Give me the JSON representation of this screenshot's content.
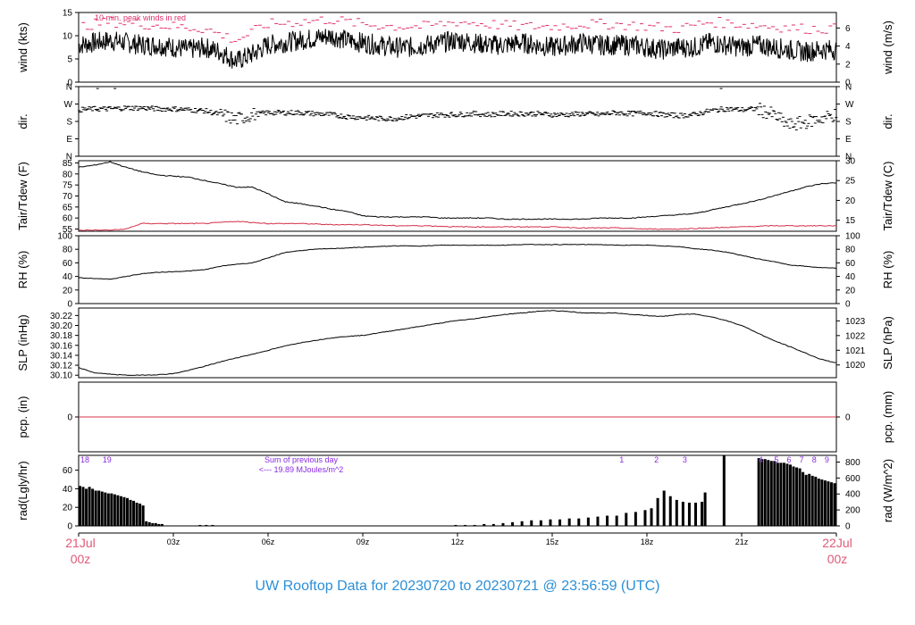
{
  "title": "UW Rooftop Data for 20230720  to  20230721 @ 23:56:59  (UTC)",
  "colors": {
    "line": "#000000",
    "tdew": "#d4304a",
    "peak": "#e0306a",
    "pcp": "#d4304a",
    "annot": "#8a2be2",
    "date": "#e05a78",
    "title": "#2b8fd6"
  },
  "chart_data": [
    {
      "id": "wind",
      "type": "line",
      "ylabel": "wind (kts)",
      "ylabel_right": "wind (m/s)",
      "ylim": [
        0,
        15
      ],
      "yticks": [
        0,
        5,
        10,
        15
      ],
      "right_ylim": [
        0,
        7.72
      ],
      "right_yticks": [
        0,
        2,
        4,
        6
      ],
      "annotation": "10 min. peak winds in red",
      "series": [
        {
          "role": "mean",
          "x": [
            0,
            0.5,
            1,
            1.5,
            2,
            2.5,
            3,
            3.5,
            4,
            4.5,
            5,
            5.5,
            6,
            6.5,
            7,
            7.5,
            8,
            8.5,
            9,
            9.5,
            10,
            10.5,
            11,
            11.5,
            12,
            12.5,
            13,
            13.5,
            14,
            14.5,
            15,
            15.5,
            16,
            16.5,
            17,
            17.5,
            18,
            18.5,
            19,
            19.5,
            20,
            20.5,
            21,
            21.5,
            22,
            22.5,
            23,
            23.5,
            24
          ],
          "y": [
            8,
            8.5,
            9,
            8.5,
            8,
            8,
            7.5,
            7,
            7.5,
            6.5,
            4.5,
            6,
            8,
            8.5,
            9,
            9.5,
            10,
            9,
            8.5,
            8,
            7.5,
            7.5,
            8,
            8.5,
            9,
            8.5,
            8,
            8,
            8.5,
            8,
            7.5,
            8,
            8.5,
            8,
            8,
            8,
            7.5,
            7,
            7.5,
            7.5,
            8.5,
            8,
            7.5,
            8,
            7.5,
            7,
            6.5,
            7,
            7
          ]
        },
        {
          "role": "peak",
          "x": [
            0,
            1,
            2,
            3,
            4,
            5,
            6,
            7,
            8,
            9,
            10,
            11,
            12,
            13,
            14,
            15,
            16,
            17,
            18,
            19,
            20,
            21,
            22,
            23,
            24
          ],
          "y": [
            12,
            13,
            12.5,
            12,
            11.5,
            9,
            12.5,
            13,
            13.5,
            12.5,
            12,
            12,
            13,
            12.5,
            12,
            12,
            12.5,
            12.5,
            12,
            11.5,
            13,
            12.5,
            12,
            11.5,
            11.5
          ]
        }
      ]
    },
    {
      "id": "dir",
      "type": "scatter",
      "ylabel": "dir.",
      "ylabel_right": "dir.",
      "ylim": [
        0,
        360
      ],
      "yticks": [
        0,
        90,
        180,
        270,
        360
      ],
      "ytick_labels": [
        "N",
        "E",
        "S",
        "W",
        "N"
      ],
      "series": [
        {
          "x": [
            0,
            0.5,
            1,
            1.5,
            2,
            2.5,
            3,
            3.5,
            4,
            4.5,
            5,
            5.5,
            6,
            6.5,
            7,
            7.5,
            8,
            8.5,
            9,
            9.5,
            10,
            10.5,
            11,
            11.5,
            12,
            12.5,
            13,
            13.5,
            14,
            14.5,
            15,
            15.5,
            16,
            16.5,
            17,
            17.5,
            18,
            18.5,
            19,
            19.5,
            20,
            20.5,
            21,
            21.5,
            22,
            22.5,
            23,
            23.5,
            24
          ],
          "y": [
            240,
            245,
            245,
            250,
            250,
            245,
            245,
            240,
            235,
            215,
            190,
            215,
            225,
            225,
            225,
            220,
            215,
            205,
            200,
            195,
            195,
            205,
            210,
            215,
            215,
            220,
            215,
            220,
            220,
            220,
            215,
            215,
            220,
            215,
            225,
            220,
            225,
            215,
            210,
            215,
            235,
            245,
            240,
            245,
            215,
            160,
            175,
            195,
            215
          ]
        }
      ]
    },
    {
      "id": "temp",
      "type": "line",
      "ylabel": "Tair/Tdew (F)",
      "ylabel_right": "Tair/Tdew (C)",
      "ylim": [
        54,
        86
      ],
      "yticks": [
        55,
        60,
        65,
        70,
        75,
        80,
        85
      ],
      "right_yticks": [
        15,
        20,
        25,
        30
      ],
      "series": [
        {
          "name": "Tair",
          "role": "tair",
          "x": [
            0,
            0.5,
            1,
            1.5,
            2,
            2.5,
            3,
            3.5,
            4,
            4.5,
            5,
            5.5,
            6,
            6.5,
            7,
            7.5,
            8,
            8.5,
            9,
            9.5,
            10,
            10.5,
            11,
            11.5,
            12,
            12.5,
            13,
            13.5,
            14,
            14.5,
            15,
            15.5,
            16,
            16.5,
            17,
            17.5,
            18,
            18.5,
            19,
            19.5,
            20,
            20.5,
            21,
            21.5,
            22,
            22.5,
            23,
            23.5,
            24
          ],
          "y": [
            83,
            84,
            85.5,
            83,
            81,
            79.5,
            79,
            78.5,
            77,
            75.5,
            74,
            74,
            71,
            67.5,
            66.5,
            65.5,
            64,
            63,
            61,
            60.5,
            60.5,
            60.5,
            60.5,
            60,
            60,
            60,
            60,
            59.5,
            59.5,
            59.5,
            59.5,
            59.5,
            59.5,
            60,
            60,
            60,
            60.5,
            61,
            61.5,
            62,
            63.5,
            65,
            66.5,
            68,
            70,
            72,
            74,
            75.5,
            76
          ]
        },
        {
          "name": "Tdew",
          "role": "tdew",
          "x": [
            0,
            1,
            1.5,
            2,
            3,
            4,
            5,
            6,
            7,
            8,
            9,
            10,
            11,
            12,
            13,
            14,
            15,
            16,
            17,
            18,
            19,
            20,
            21,
            22,
            23,
            24
          ],
          "y": [
            54.5,
            54.5,
            55,
            57.5,
            57.5,
            57.5,
            58.5,
            57.5,
            57.5,
            57,
            57,
            56.5,
            56.5,
            56,
            56,
            56,
            56,
            55.5,
            55.5,
            55,
            55,
            55.5,
            56,
            56.5,
            56.5,
            56.5
          ]
        }
      ]
    },
    {
      "id": "rh",
      "type": "line",
      "ylabel": "RH (%)",
      "ylabel_right": "RH (%)",
      "ylim": [
        0,
        100
      ],
      "yticks": [
        0,
        20,
        40,
        60,
        80,
        100
      ],
      "series": [
        {
          "x": [
            0,
            0.5,
            1,
            1.5,
            2,
            2.5,
            3,
            3.5,
            4,
            4.5,
            5,
            5.5,
            6,
            6.5,
            7,
            7.5,
            8,
            8.5,
            9,
            9.5,
            10,
            10.5,
            11,
            11.5,
            12,
            12.5,
            13,
            13.5,
            14,
            14.5,
            15,
            15.5,
            16,
            16.5,
            17,
            17.5,
            18,
            18.5,
            19,
            19.5,
            20,
            20.5,
            21,
            21.5,
            22,
            22.5,
            23,
            23.5,
            24
          ],
          "y": [
            38,
            37,
            36,
            40,
            44,
            46,
            47,
            48,
            50,
            55,
            58,
            60,
            67,
            75,
            78,
            80,
            81,
            82,
            83,
            84,
            85,
            85,
            85,
            86,
            86,
            86,
            86,
            86,
            87,
            87,
            87,
            87,
            87,
            87,
            86,
            86,
            86,
            85,
            84,
            81,
            79,
            76,
            71,
            66,
            62,
            57,
            55,
            53,
            52
          ]
        }
      ]
    },
    {
      "id": "slp",
      "type": "line",
      "ylabel": "SLP (inHg)",
      "ylabel_right": "SLP (hPa)",
      "ylim": [
        30.095,
        30.235
      ],
      "yticks": [
        30.1,
        30.12,
        30.14,
        30.16,
        30.18,
        30.2,
        30.22
      ],
      "ytick_labels": [
        "30.10",
        "30.12",
        "30.14",
        "30.16",
        "30.18",
        "30.20",
        "30.22"
      ],
      "right_yticks": [
        1020,
        1021,
        1022,
        1023
      ],
      "series": [
        {
          "x": [
            0,
            0.5,
            1,
            1.5,
            2,
            2.5,
            3,
            3.5,
            4,
            4.5,
            5,
            5.5,
            6,
            6.5,
            7,
            7.5,
            8,
            8.5,
            9,
            9.5,
            10,
            10.5,
            11,
            11.5,
            12,
            12.5,
            13,
            13.5,
            14,
            14.5,
            15,
            15.5,
            16,
            16.5,
            17,
            17.5,
            18,
            18.5,
            19,
            19.5,
            20,
            20.5,
            21,
            21.5,
            22,
            22.5,
            23,
            23.5,
            24
          ],
          "y": [
            30.115,
            30.105,
            30.102,
            30.1,
            30.1,
            30.101,
            30.103,
            30.11,
            30.118,
            30.127,
            30.135,
            30.142,
            30.15,
            30.158,
            30.165,
            30.17,
            30.175,
            30.178,
            30.18,
            30.185,
            30.19,
            30.195,
            30.2,
            30.205,
            30.21,
            30.213,
            30.218,
            30.222,
            30.225,
            30.228,
            30.23,
            30.228,
            30.225,
            30.225,
            30.225,
            30.222,
            30.22,
            30.218,
            30.222,
            30.223,
            30.218,
            30.21,
            30.2,
            30.185,
            30.17,
            30.158,
            30.145,
            30.132,
            30.125
          ]
        }
      ]
    },
    {
      "id": "pcp",
      "type": "line",
      "ylabel": "pcp. (in)",
      "ylabel_right": "pcp. (mm)",
      "ylim": [
        -1,
        1
      ],
      "yticks": [
        0
      ],
      "right_yticks": [
        0
      ],
      "series": [
        {
          "x": [
            0,
            24
          ],
          "y": [
            0,
            0
          ]
        }
      ]
    },
    {
      "id": "rad",
      "type": "bar",
      "ylabel": "rad(Lgly/hr)",
      "ylabel_right": "rad (W/m^2)",
      "ylim": [
        0,
        76
      ],
      "yticks": [
        0,
        20,
        40,
        60
      ],
      "right_yticks": [
        0,
        200,
        400,
        600,
        800
      ],
      "hour_labels": [
        {
          "x": 0.2,
          "label": "18"
        },
        {
          "x": 0.9,
          "label": "19"
        },
        {
          "x": 17.2,
          "label": "1"
        },
        {
          "x": 18.3,
          "label": "2"
        },
        {
          "x": 19.2,
          "label": "3"
        },
        {
          "x": 21.6,
          "label": "4"
        },
        {
          "x": 22.1,
          "label": "5"
        },
        {
          "x": 22.5,
          "label": "6"
        },
        {
          "x": 22.9,
          "label": "7"
        },
        {
          "x": 23.3,
          "label": "8"
        },
        {
          "x": 23.7,
          "label": "9"
        }
      ],
      "annotation_lines": [
        "Sum of previous day",
        "<--- 19.89 MJoules/m^2"
      ],
      "series": [
        {
          "x": [
            0,
            0.1,
            0.2,
            0.3,
            0.4,
            0.5,
            0.6,
            0.7,
            0.8,
            0.9,
            1.0,
            1.1,
            1.2,
            1.3,
            1.4,
            1.5,
            1.6,
            1.7,
            1.8,
            1.9,
            2.0,
            2.1,
            2.2,
            2.3,
            2.4,
            2.5,
            2.6,
            3.8,
            4.0,
            4.2,
            11.9,
            12.2,
            12.5,
            12.8,
            13.1,
            13.4,
            13.7,
            14.0,
            14.3,
            14.6,
            14.9,
            15.2,
            15.5,
            15.8,
            16.1,
            16.4,
            16.7,
            17.0,
            17.3,
            17.6,
            17.9,
            18.1,
            18.3,
            18.5,
            18.7,
            18.9,
            19.1,
            19.3,
            19.5,
            19.7,
            19.8,
            20.4,
            21.5,
            21.6,
            21.7,
            21.8,
            21.9,
            22.0,
            22.1,
            22.2,
            22.3,
            22.4,
            22.5,
            22.6,
            22.7,
            22.8,
            22.9,
            23.0,
            23.1,
            23.2,
            23.3,
            23.4,
            23.5,
            23.6,
            23.7,
            23.8,
            23.9
          ],
          "y": [
            43,
            42,
            40,
            42,
            40,
            38,
            38,
            37,
            36,
            35,
            35,
            34,
            33,
            32,
            31,
            30,
            28,
            27,
            25,
            24,
            22,
            5,
            4,
            3,
            3,
            2,
            2,
            1,
            1,
            1,
            1,
            1,
            1,
            2,
            2,
            3,
            4,
            5,
            6,
            6,
            7,
            7,
            8,
            8,
            9,
            10,
            11,
            11,
            14,
            15,
            17,
            19,
            30,
            38,
            32,
            28,
            26,
            25,
            25,
            26,
            36,
            76,
            73,
            72,
            72,
            71,
            70,
            70,
            68,
            68,
            68,
            67,
            66,
            64,
            63,
            62,
            58,
            55,
            56,
            54,
            53,
            51,
            50,
            49,
            48,
            47,
            46
          ]
        }
      ]
    }
  ],
  "x_axis": {
    "range": [
      0,
      24
    ],
    "ticks": [
      {
        "x": 3,
        "label": "03z"
      },
      {
        "x": 6,
        "label": "06z"
      },
      {
        "x": 9,
        "label": "09z"
      },
      {
        "x": 12,
        "label": "12z"
      },
      {
        "x": 15,
        "label": "15z"
      },
      {
        "x": 18,
        "label": "18z"
      },
      {
        "x": 21,
        "label": "21z"
      }
    ],
    "start_label": [
      "21Jul",
      "00z"
    ],
    "end_label": [
      "22Jul",
      "00z"
    ]
  }
}
